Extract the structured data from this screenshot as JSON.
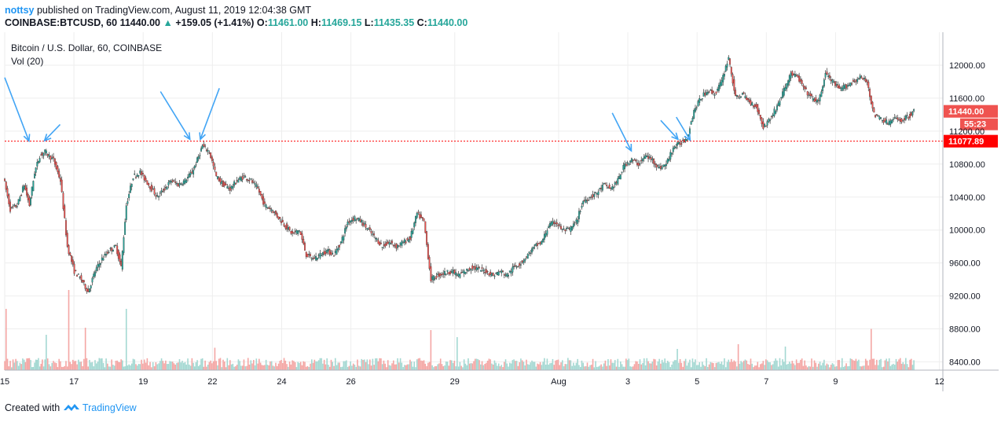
{
  "header": {
    "user": "nottsy",
    "published_text": "published on TradingView.com, August 11, 2019 12:04:38 GMT",
    "symbol": "COINBASE:BTCUSD, 60",
    "last": "11440.00",
    "change": "+159.05 (+1.41%)",
    "o_label": "O:",
    "o": "11461.00",
    "h_label": "H:",
    "h": "11469.15",
    "l_label": "L:",
    "l": "11435.35",
    "c_label": "C:",
    "c": "11440.00"
  },
  "chart_data": {
    "type": "candlestick",
    "title": "Bitcoin / U.S. Dollar, 60, COINBASE",
    "indicator": "Vol (20)",
    "ylim": [
      8300,
      12400
    ],
    "y_ticks": [
      8400,
      8800,
      9200,
      9600,
      10000,
      10400,
      10800,
      11200,
      11600,
      12000
    ],
    "y_tick_labels": [
      "8400.00",
      "8800.00",
      "9200.00",
      "9600.00",
      "10000.00",
      "10400.00",
      "10800.00",
      "11200.00",
      "11600.00",
      "12000.00"
    ],
    "x_ticks": [
      {
        "day": 15,
        "label": "15"
      },
      {
        "day": 17,
        "label": "17"
      },
      {
        "day": 19,
        "label": "19"
      },
      {
        "day": 21,
        "label": "22"
      },
      {
        "day": 23,
        "label": "24"
      },
      {
        "day": 25,
        "label": "26"
      },
      {
        "day": 28,
        "label": "29"
      },
      {
        "day": 31,
        "label": "Aug"
      },
      {
        "day": 33,
        "label": "3"
      },
      {
        "day": 35,
        "label": "5"
      },
      {
        "day": 37,
        "label": "7"
      },
      {
        "day": 39,
        "label": "9"
      },
      {
        "day": 42,
        "label": "12"
      }
    ],
    "x_range": [
      15,
      42.1
    ],
    "price_path": [
      [
        15.0,
        10650
      ],
      [
        15.2,
        10250
      ],
      [
        15.4,
        10300
      ],
      [
        15.6,
        10550
      ],
      [
        15.75,
        10300
      ],
      [
        15.9,
        10700
      ],
      [
        16.05,
        10900
      ],
      [
        16.2,
        10950
      ],
      [
        16.45,
        10850
      ],
      [
        16.65,
        10600
      ],
      [
        16.85,
        9800
      ],
      [
        17.05,
        9500
      ],
      [
        17.25,
        9400
      ],
      [
        17.45,
        9250
      ],
      [
        17.65,
        9500
      ],
      [
        17.85,
        9650
      ],
      [
        18.05,
        9750
      ],
      [
        18.25,
        9800
      ],
      [
        18.4,
        9550
      ],
      [
        18.55,
        10300
      ],
      [
        18.75,
        10650
      ],
      [
        18.95,
        10700
      ],
      [
        19.2,
        10550
      ],
      [
        19.45,
        10400
      ],
      [
        19.65,
        10500
      ],
      [
        19.85,
        10600
      ],
      [
        20.05,
        10550
      ],
      [
        20.25,
        10600
      ],
      [
        20.45,
        10700
      ],
      [
        20.6,
        10850
      ],
      [
        20.75,
        11020
      ],
      [
        20.95,
        10950
      ],
      [
        21.15,
        10650
      ],
      [
        21.35,
        10550
      ],
      [
        21.55,
        10500
      ],
      [
        21.75,
        10600
      ],
      [
        21.95,
        10650
      ],
      [
        22.15,
        10600
      ],
      [
        22.35,
        10500
      ],
      [
        22.55,
        10300
      ],
      [
        22.75,
        10250
      ],
      [
        22.95,
        10150
      ],
      [
        23.15,
        10050
      ],
      [
        23.35,
        9950
      ],
      [
        23.55,
        10000
      ],
      [
        23.75,
        9700
      ],
      [
        23.95,
        9650
      ],
      [
        24.15,
        9700
      ],
      [
        24.35,
        9750
      ],
      [
        24.55,
        9700
      ],
      [
        24.75,
        9850
      ],
      [
        24.95,
        10100
      ],
      [
        25.15,
        10150
      ],
      [
        25.35,
        10100
      ],
      [
        25.55,
        10000
      ],
      [
        25.75,
        9900
      ],
      [
        25.95,
        9800
      ],
      [
        26.15,
        9850
      ],
      [
        26.35,
        9800
      ],
      [
        26.55,
        9850
      ],
      [
        26.75,
        9900
      ],
      [
        26.95,
        10200
      ],
      [
        27.15,
        10100
      ],
      [
        27.35,
        9400
      ],
      [
        27.55,
        9450
      ],
      [
        27.75,
        9480
      ],
      [
        27.95,
        9500
      ],
      [
        28.15,
        9450
      ],
      [
        28.35,
        9500
      ],
      [
        28.55,
        9550
      ],
      [
        28.75,
        9520
      ],
      [
        28.95,
        9500
      ],
      [
        29.15,
        9450
      ],
      [
        29.35,
        9500
      ],
      [
        29.55,
        9450
      ],
      [
        29.75,
        9550
      ],
      [
        29.95,
        9600
      ],
      [
        30.15,
        9700
      ],
      [
        30.35,
        9800
      ],
      [
        30.55,
        9850
      ],
      [
        30.75,
        10050
      ],
      [
        30.95,
        10100
      ],
      [
        31.15,
        10000
      ],
      [
        31.35,
        10000
      ],
      [
        31.55,
        10100
      ],
      [
        31.75,
        10350
      ],
      [
        31.95,
        10400
      ],
      [
        32.15,
        10450
      ],
      [
        32.35,
        10550
      ],
      [
        32.55,
        10500
      ],
      [
        32.75,
        10600
      ],
      [
        32.95,
        10800
      ],
      [
        33.15,
        10850
      ],
      [
        33.35,
        10800
      ],
      [
        33.55,
        10900
      ],
      [
        33.75,
        10850
      ],
      [
        33.95,
        10750
      ],
      [
        34.15,
        10800
      ],
      [
        34.35,
        11000
      ],
      [
        34.55,
        11050
      ],
      [
        34.75,
        11120
      ],
      [
        34.95,
        11450
      ],
      [
        35.15,
        11600
      ],
      [
        35.35,
        11700
      ],
      [
        35.55,
        11650
      ],
      [
        35.75,
        11800
      ],
      [
        35.95,
        12100
      ],
      [
        36.15,
        11600
      ],
      [
        36.35,
        11650
      ],
      [
        36.55,
        11550
      ],
      [
        36.75,
        11500
      ],
      [
        36.95,
        11250
      ],
      [
        37.15,
        11350
      ],
      [
        37.35,
        11500
      ],
      [
        37.55,
        11700
      ],
      [
        37.75,
        11900
      ],
      [
        37.95,
        11850
      ],
      [
        38.15,
        11700
      ],
      [
        38.35,
        11600
      ],
      [
        38.55,
        11550
      ],
      [
        38.75,
        11900
      ],
      [
        38.95,
        11800
      ],
      [
        39.15,
        11700
      ],
      [
        39.35,
        11750
      ],
      [
        39.55,
        11800
      ],
      [
        39.75,
        11850
      ],
      [
        39.95,
        11800
      ],
      [
        40.15,
        11400
      ],
      [
        40.35,
        11350
      ],
      [
        40.55,
        11300
      ],
      [
        40.75,
        11350
      ],
      [
        40.95,
        11330
      ],
      [
        41.15,
        11380
      ],
      [
        41.3,
        11440
      ]
    ],
    "volume_spikes": [
      {
        "day": 15.05,
        "v": 260
      },
      {
        "day": 16.2,
        "v": 150
      },
      {
        "day": 16.85,
        "v": 340
      },
      {
        "day": 17.35,
        "v": 180
      },
      {
        "day": 18.5,
        "v": 260
      },
      {
        "day": 27.3,
        "v": 170
      },
      {
        "day": 28.1,
        "v": 140
      },
      {
        "day": 36.2,
        "v": 110
      },
      {
        "day": 40.05,
        "v": 175
      },
      {
        "day": 37.55,
        "v": 100
      },
      {
        "day": 34.4,
        "v": 90
      },
      {
        "day": 21.1,
        "v": 95
      }
    ],
    "volume_max": 400,
    "horizontal_line": {
      "value": 11077.89,
      "label": "11077.89",
      "color": "#ff0000"
    },
    "last_price": {
      "value": 11440.0,
      "label": "11440.00",
      "countdown": "55:23",
      "color": "#ef5350"
    },
    "arrows": [
      {
        "from": [
          15.0,
          11850
        ],
        "to": [
          15.7,
          11080
        ]
      },
      {
        "from": [
          16.6,
          11280
        ],
        "to": [
          16.15,
          11085
        ]
      },
      {
        "from": [
          19.5,
          11680
        ],
        "to": [
          20.35,
          11100
        ]
      },
      {
        "from": [
          21.2,
          11720
        ],
        "to": [
          20.65,
          11100
        ]
      },
      {
        "from": [
          32.55,
          11420
        ],
        "to": [
          33.1,
          10960
        ]
      },
      {
        "from": [
          33.95,
          11330
        ],
        "to": [
          34.45,
          11100
        ]
      },
      {
        "from": [
          34.4,
          11370
        ],
        "to": [
          34.8,
          11090
        ]
      },
      {
        "from": [
          33.05,
          11300
        ],
        "to": [
          33.05,
          11300
        ]
      }
    ],
    "colors": {
      "up": "#26a69a",
      "down": "#ef5350",
      "vol_up": "#a4d8d2",
      "vol_down": "#f4a6a4",
      "arrow": "#42a5f5",
      "grid": "#eeeeee"
    }
  },
  "footer": {
    "created_with": "Created with",
    "brand": "TradingView"
  }
}
